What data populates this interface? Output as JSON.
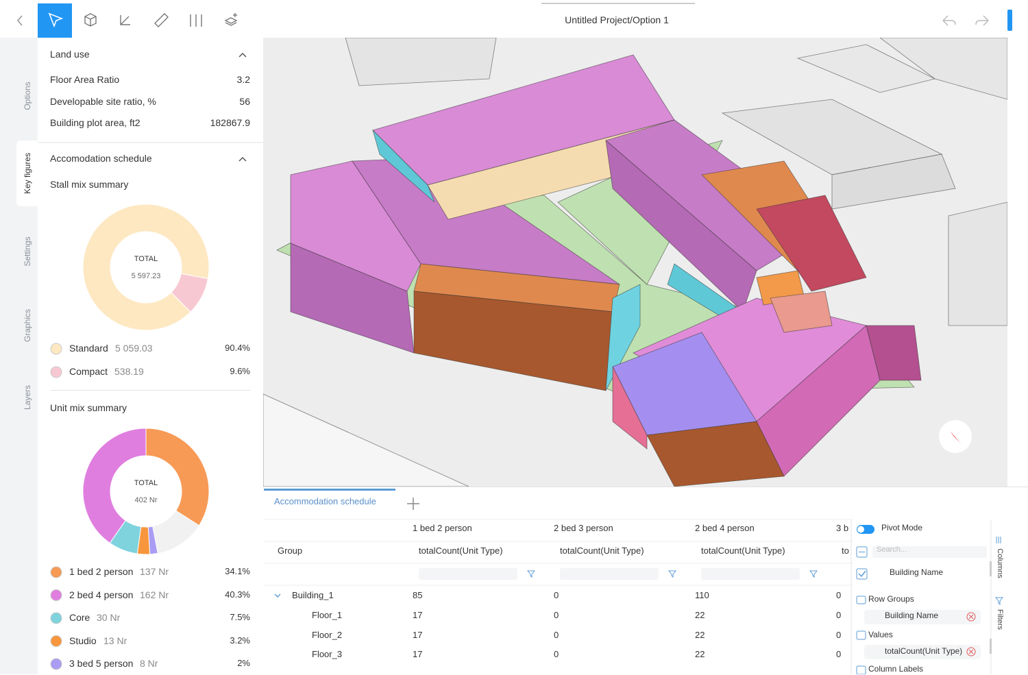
{
  "toolbar": {
    "title": "Untitled Project/Option 1"
  },
  "side_tabs": [
    "Options",
    "Key figures",
    "Settings",
    "Graphics",
    "Layers"
  ],
  "land_use": {
    "title": "Land use",
    "rows": [
      {
        "label": "Floor Area Ratio",
        "value": "3.2"
      },
      {
        "label": "Developable site ratio, %",
        "value": "56"
      },
      {
        "label": "Building plot area, ft2",
        "value": "182867.9"
      }
    ]
  },
  "accommodation": {
    "title": "Accomodation schedule",
    "stall_mix": {
      "title": "Stall mix summary",
      "center_title": "TOTAL",
      "center_value": "5 597.23",
      "items": [
        {
          "name": "Standard",
          "amount": "5 059.03",
          "share": 90.4,
          "share_label": "90.4%",
          "color": "#fde8c2"
        },
        {
          "name": "Compact",
          "amount": "538.19",
          "share": 9.6,
          "share_label": "9.6%",
          "color": "#f8c8d2"
        }
      ]
    },
    "unit_mix": {
      "title": "Unit mix summary",
      "center_title": "TOTAL",
      "center_value": "402 Nr",
      "items": [
        {
          "name": "1 bed 2 person",
          "amount": "137 Nr",
          "share": 34.1,
          "share_label": "34.1%",
          "color": "#f79a56"
        },
        {
          "name": "2 bed 4 person",
          "amount": "162 Nr",
          "share": 40.3,
          "share_label": "40.3%",
          "color": "#e07ee0"
        },
        {
          "name": "Core",
          "amount": "30 Nr",
          "share": 7.5,
          "share_label": "7.5%",
          "color": "#7ed3dd"
        },
        {
          "name": "Studio",
          "amount": "13 Nr",
          "share": 3.2,
          "share_label": "3.2%",
          "color": "#f7963c"
        },
        {
          "name": "3 bed 5 person",
          "amount": "8 Nr",
          "share": 2,
          "share_label": "2%",
          "color": "#a99cf2"
        }
      ]
    }
  },
  "grid": {
    "tab": "Accommodation schedule",
    "group_header": "Group",
    "columns": [
      {
        "name": "1 bed 2 person",
        "measure": "totalCount(Unit Type)"
      },
      {
        "name": "2 bed 3 person",
        "measure": "totalCount(Unit Type)"
      },
      {
        "name": "2 bed 4 person",
        "measure": "totalCount(Unit Type)"
      },
      {
        "name": "3 b",
        "measure": "to"
      }
    ],
    "rows": [
      {
        "label": "Building_1",
        "cells": [
          "85",
          "0",
          "110",
          "0"
        ]
      },
      {
        "label": "Floor_1",
        "cells": [
          "17",
          "0",
          "22",
          "0"
        ]
      },
      {
        "label": "Floor_2",
        "cells": [
          "17",
          "0",
          "22",
          "0"
        ]
      },
      {
        "label": "Floor_3",
        "cells": [
          "17",
          "0",
          "22",
          "0"
        ]
      }
    ]
  },
  "pivot_panel": {
    "mode": "Pivot Mode",
    "search_placeholder": "Search...",
    "column_item": "Building Name",
    "row_groups": "Row Groups",
    "row_group_item": "Building Name",
    "values": "Values",
    "value_item": "totalCount(Unit Type)",
    "column_labels": "Column Labels",
    "tabs": [
      "Columns",
      "Filters"
    ]
  }
}
